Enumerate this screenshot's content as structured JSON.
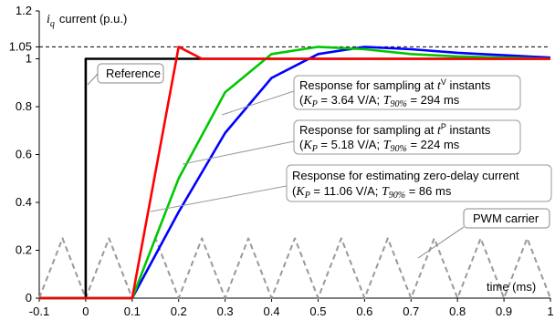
{
  "chart_data": {
    "type": "line",
    "ylabel_var": "i",
    "ylabel_sub": "q",
    "ylabel_text": "current (p.u.)",
    "xlabel": "time (ms)",
    "xlim": [
      -0.1,
      1.0
    ],
    "ylim": [
      0,
      1.2
    ],
    "x_ticks": [
      "-0.1",
      "0",
      "0.1",
      "0.2",
      "0.3",
      "0.4",
      "0.5",
      "0.6",
      "0.7",
      "0.8",
      "0.9",
      "1"
    ],
    "x_tick_values": [
      -0.1,
      0,
      0.1,
      0.2,
      0.3,
      0.4,
      0.5,
      0.6,
      0.7,
      0.8,
      0.9,
      1.0
    ],
    "y_ticks": [
      "0",
      "0.2",
      "0.4",
      "0.6",
      "0.8",
      "1",
      "1.05",
      "1.2"
    ],
    "y_tick_values": [
      0,
      0.2,
      0.4,
      0.6,
      0.8,
      1.0,
      1.05,
      1.2
    ],
    "reference_line_value": 1.05,
    "series": [
      {
        "name": "Reference",
        "color": "#000000",
        "dashed": false,
        "x": [
          -0.1,
          0,
          0,
          1.0
        ],
        "y": [
          0,
          0,
          1,
          1
        ]
      },
      {
        "name": "Response for estimating zero-delay current",
        "color": "#ff0000",
        "dashed": false,
        "x": [
          -0.1,
          0.1,
          0.2,
          0.25,
          0.3,
          1.0
        ],
        "y": [
          0,
          0,
          1.05,
          1.0,
          1.0,
          1.0
        ]
      },
      {
        "name": "Response for sampling at tP instants",
        "color": "#00c800",
        "dashed": false,
        "x": [
          -0.1,
          0.1,
          0.2,
          0.3,
          0.4,
          0.5,
          0.6,
          0.7,
          0.8,
          0.9,
          1.0
        ],
        "y": [
          0,
          0,
          0.5,
          0.86,
          1.02,
          1.05,
          1.04,
          1.02,
          1.01,
          1.005,
          1.0
        ]
      },
      {
        "name": "Response for sampling at tV instants",
        "color": "#0000ff",
        "dashed": false,
        "x": [
          -0.1,
          0.1,
          0.2,
          0.3,
          0.4,
          0.5,
          0.6,
          0.7,
          0.8,
          0.9,
          1.0
        ],
        "y": [
          0,
          0,
          0.36,
          0.69,
          0.92,
          1.02,
          1.05,
          1.04,
          1.025,
          1.015,
          1.005
        ]
      },
      {
        "name": "PWM carrier",
        "color": "#999999",
        "dashed": true,
        "x": [
          -0.1,
          -0.05,
          0,
          0.05,
          0.1,
          0.15,
          0.2,
          0.25,
          0.3,
          0.35,
          0.4,
          0.45,
          0.5,
          0.55,
          0.6,
          0.65,
          0.7,
          0.75,
          0.8,
          0.85,
          0.9,
          0.95,
          1.0
        ],
        "y": [
          0,
          0.25,
          0,
          0.25,
          0,
          0.25,
          0,
          0.25,
          0,
          0.25,
          0,
          0.25,
          0,
          0.25,
          0,
          0.25,
          0,
          0.25,
          0,
          0.25,
          0,
          0.25,
          0
        ]
      }
    ],
    "annotations": {
      "reference": "Reference",
      "pwm": "PWM carrier",
      "tv_line1_pre": "Response for sampling at ",
      "tv_line1_var": "t",
      "tv_line1_sup": "V",
      "tv_line1_post": " instants",
      "tv_line2_open": "(",
      "tv_line2_kvar": "K",
      "tv_line2_ksub": "P",
      "tv_line2_kval": " = 3.64 V/A; ",
      "tv_line2_tvar": "T",
      "tv_line2_tsub": "90%",
      "tv_line2_tval": " = 294 ms",
      "tp_line1_pre": "Response for sampling at ",
      "tp_line1_var": "t",
      "tp_line1_sup": "P",
      "tp_line1_post": " instants",
      "tp_line2_open": "(",
      "tp_line2_kvar": "K",
      "tp_line2_ksub": "P",
      "tp_line2_kval": " = 5.18 V/A; ",
      "tp_line2_tvar": "T",
      "tp_line2_tsub": "90%",
      "tp_line2_tval": " = 224 ms",
      "zd_line1": "Response for estimating zero-delay current",
      "zd_line2_open": "(",
      "zd_line2_kvar": "K",
      "zd_line2_ksub": "P",
      "zd_line2_kval": " = 11.06 V/A; ",
      "zd_line2_tvar": "T",
      "zd_line2_tsub": "90%",
      "zd_line2_tval": " = 86 ms"
    }
  }
}
